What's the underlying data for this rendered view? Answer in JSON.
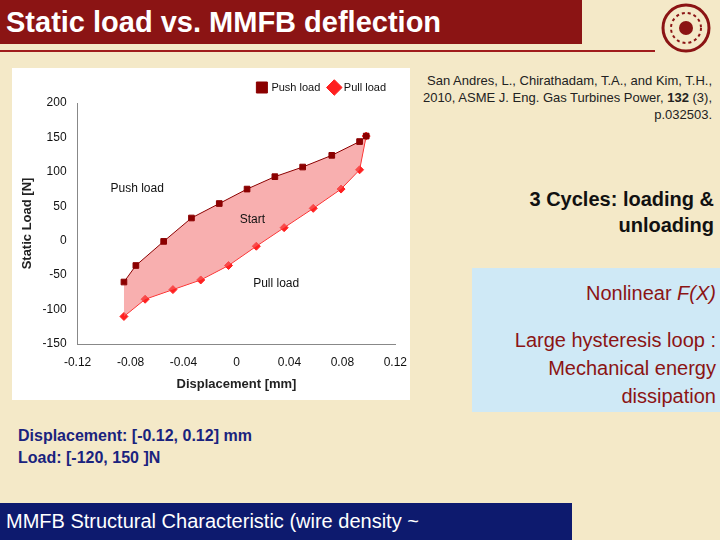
{
  "title": "Static load vs. MMFB deflection",
  "citation": [
    "San Andres, L., Chirathadam, T.A., and Kim, T.H., 2010, ASME J. Eng. Gas Turbines Power, ",
    "132",
    " (3), p.032503."
  ],
  "cycles_note": "3 Cycles: loading & unloading",
  "box": {
    "nonlinear": [
      "Nonlinear ",
      "F(X)"
    ],
    "hysteresis": "Large hysteresis loop : Mechanical energy dissipation"
  },
  "ranges": [
    "Displacement: [-0.12, 0.12] mm",
    "Load: [-120, 150 ]N"
  ],
  "footer": "MMFB Structural Characteristic (wire density ~",
  "chart_data": {
    "type": "scatter",
    "x_label": "Displacement [mm]",
    "y_label": "Static Load [N]",
    "xlim": [
      -0.12,
      0.12
    ],
    "xticks": [
      -0.12,
      -0.08,
      -0.04,
      0,
      0.04,
      0.08,
      0.12
    ],
    "ylim": [
      -150,
      200
    ],
    "yticks": [
      -150,
      -100,
      -50,
      0,
      50,
      100,
      150,
      200
    ],
    "grid": false,
    "legend": "upper right",
    "series": [
      {
        "name": "Push load",
        "color": "#8b0000",
        "marker": "square",
        "x": [
          -0.085,
          -0.076,
          -0.055,
          -0.034,
          -0.013,
          0.008,
          0.029,
          0.05,
          0.072,
          0.093,
          0.098
        ],
        "values": [
          -60,
          -36,
          -1,
          33,
          54,
          75,
          93,
          107,
          124,
          144,
          152
        ]
      },
      {
        "name": "Pull load",
        "color": "#ff2020",
        "marker": "diamond",
        "x": [
          -0.085,
          -0.069,
          -0.048,
          -0.027,
          -0.006,
          0.015,
          0.036,
          0.058,
          0.079,
          0.093,
          0.098
        ],
        "values": [
          -110,
          -85,
          -71,
          -57,
          -36,
          -8,
          19,
          47,
          75,
          103,
          152
        ]
      }
    ],
    "annotations": [
      {
        "text": "Push load",
        "x": -0.075,
        "y": 75
      },
      {
        "text": "Start",
        "x": 0.012,
        "y": 30
      },
      {
        "text": "Pull load",
        "x": 0.03,
        "y": -62
      }
    ]
  }
}
